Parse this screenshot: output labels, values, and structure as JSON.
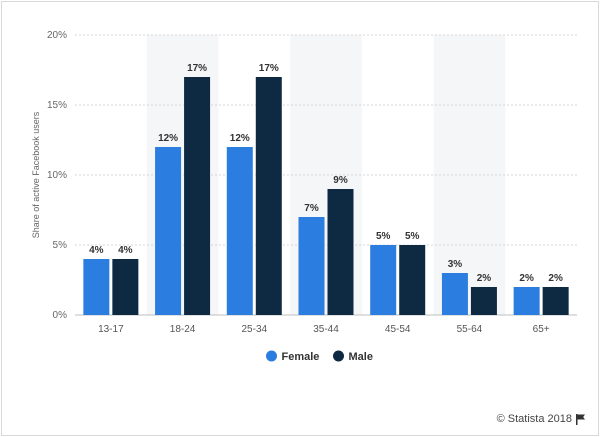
{
  "chart_data": {
    "type": "bar",
    "title": "",
    "xlabel": "",
    "ylabel": "Share of active Facebook users",
    "categories": [
      "13-17",
      "18-24",
      "25-34",
      "35-44",
      "45-54",
      "55-64",
      "65+"
    ],
    "series": [
      {
        "name": "Female",
        "color": "#2b7de0",
        "values": [
          4,
          12,
          12,
          7,
          5,
          3,
          2
        ]
      },
      {
        "name": "Male",
        "color": "#0e2a43",
        "values": [
          4,
          17,
          17,
          9,
          5,
          2,
          2
        ]
      }
    ],
    "ylim": [
      0,
      20
    ],
    "yticks": [
      0,
      5,
      10,
      15,
      20
    ],
    "ytick_labels": [
      "0%",
      "5%",
      "10%",
      "15%",
      "20%"
    ],
    "value_labels": {
      "Female": [
        "4%",
        "12%",
        "12%",
        "7%",
        "5%",
        "3%",
        "2%"
      ],
      "Male": [
        "4%",
        "17%",
        "17%",
        "9%",
        "5%",
        "2%",
        "2%"
      ]
    },
    "legend_position": "bottom-center",
    "grid": true
  },
  "footer": {
    "credit": "© Statista 2018",
    "credit_icon": "flag-icon"
  }
}
